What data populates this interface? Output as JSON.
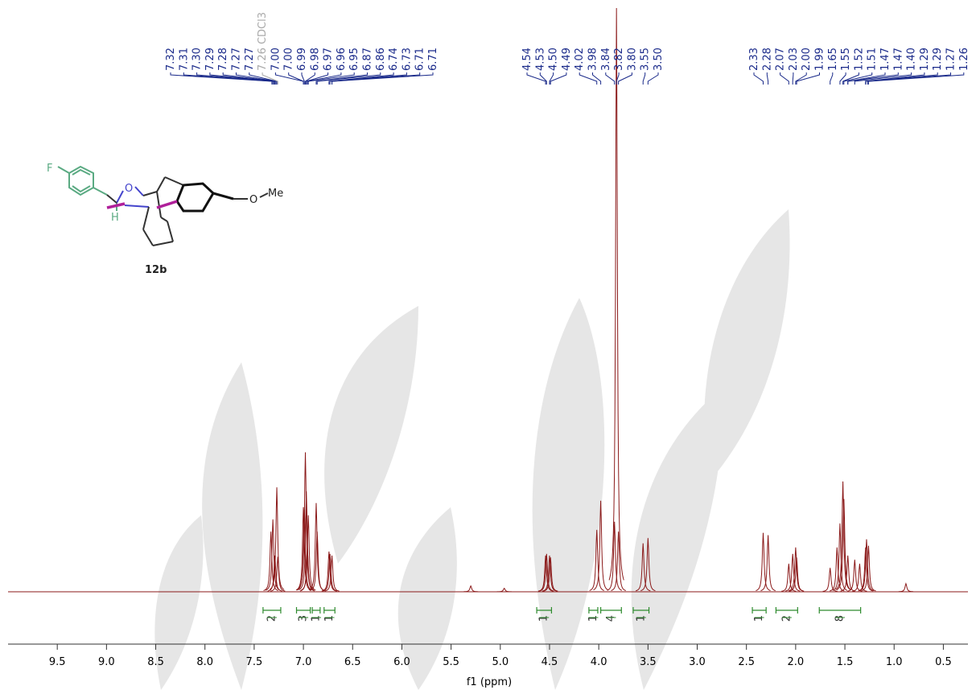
{
  "chart_data": {
    "type": "nmr",
    "x_label": "f1 (ppm)",
    "xlim": [
      10.0,
      0.25
    ],
    "ylim": [
      0,
      100
    ],
    "xticks": [
      9.5,
      {
        "value": 9,
        "label": "9.0"
      },
      8.5,
      {
        "value": 8,
        "label": "8.0"
      },
      7.5,
      {
        "value": 7,
        "label": "7.0"
      },
      6.5,
      {
        "value": 6,
        "label": "6.0"
      },
      5.5,
      {
        "value": 5,
        "label": "5.0"
      },
      4.5,
      {
        "value": 4,
        "label": "4.0"
      },
      3.5,
      {
        "value": 3,
        "label": "3.0"
      },
      2.5,
      {
        "value": 2,
        "label": "2.0"
      },
      1.5,
      {
        "value": 1,
        "label": "1.0"
      },
      0.5
    ],
    "color": "#8b1a1a",
    "label_color": "#1a2a8a",
    "integral_color": "#2e8b2e",
    "solvent_color": "#aaaaaa",
    "x": [
      7.33,
      7.31,
      7.29,
      7.27,
      7.26,
      7.0,
      6.99,
      6.98,
      6.97,
      6.96,
      6.95,
      6.87,
      6.86,
      6.74,
      6.73,
      6.71,
      5.3,
      4.96,
      4.54,
      4.53,
      4.5,
      4.49,
      4.02,
      3.98,
      3.84,
      3.82,
      3.8,
      3.55,
      3.5,
      2.33,
      2.28,
      2.07,
      2.03,
      2.0,
      1.99,
      1.65,
      1.58,
      1.55,
      1.52,
      1.51,
      1.47,
      1.4,
      1.35,
      1.29,
      1.28,
      1.26,
      0.88
    ],
    "values": [
      10.3,
      12.4,
      6.2,
      17.9,
      6,
      14.5,
      14.1,
      23.9,
      17.2,
      7.6,
      13.1,
      15.2,
      10.3,
      6.9,
      6.5,
      6.2,
      1,
      0.6,
      6.2,
      6.5,
      6.2,
      5.9,
      10.6,
      15.6,
      12,
      100,
      10.3,
      8.3,
      9.2,
      10.1,
      9.7,
      4.8,
      6.5,
      7.6,
      5.9,
      4.1,
      7.6,
      11.7,
      18.9,
      15.9,
      6.2,
      5.5,
      4.8,
      7.6,
      9,
      7.9,
      1.4
    ],
    "peak_groups": [
      [
        7.32,
        7.31,
        {
          "value": 7.3,
          "label": "7.30"
        },
        7.29,
        7.28,
        7.27,
        7.27,
        {
          "value": 7.26,
          "label": "7.26",
          "solvent": "CDCl3"
        },
        {
          "value": 7,
          "label": "7.00"
        },
        {
          "value": 7,
          "label": "7.00"
        },
        6.99,
        6.98,
        6.97,
        6.96,
        6.95,
        6.87,
        6.86,
        6.74,
        6.73,
        6.71,
        6.71
      ],
      [
        4.54,
        4.53,
        {
          "value": 4.5,
          "label": "4.50"
        },
        4.49,
        4.02,
        3.98,
        3.84,
        3.82,
        {
          "value": 3.8,
          "label": "3.80"
        },
        3.55,
        {
          "value": 3.5,
          "label": "3.50"
        }
      ],
      [
        2.33,
        2.28,
        2.07,
        2.03,
        {
          "value": 2,
          "label": "2.00"
        },
        1.99,
        1.65,
        1.55,
        1.52,
        1.51,
        1.47,
        1.47,
        {
          "value": 1.4,
          "label": "1.40"
        },
        1.29,
        1.29,
        1.27,
        1.26
      ]
    ],
    "integrals": [
      {
        "range": [
          7.41,
          7.23
        ],
        "value": 2
      },
      {
        "range": [
          7.07,
          6.93
        ],
        "value": 3
      },
      {
        "range": [
          6.91,
          6.83
        ],
        "value": 1
      },
      {
        "range": [
          6.79,
          6.68
        ],
        "value": 1
      },
      {
        "range": [
          4.63,
          4.48
        ],
        "value": 1
      },
      {
        "range": [
          4.1,
          4.01
        ],
        "value": 1
      },
      {
        "range": [
          3.98,
          3.77
        ],
        "value": 4
      },
      {
        "range": [
          3.65,
          3.49
        ],
        "value": 1
      },
      {
        "range": [
          2.44,
          2.3
        ],
        "value": 1
      },
      {
        "range": [
          2.2,
          1.98
        ],
        "value": 2
      },
      {
        "range": [
          1.76,
          1.34
        ],
        "value": 8
      }
    ]
  },
  "structure": {
    "atoms": [
      "F",
      "O",
      "O",
      "Me",
      "H"
    ],
    "label": "12b"
  }
}
